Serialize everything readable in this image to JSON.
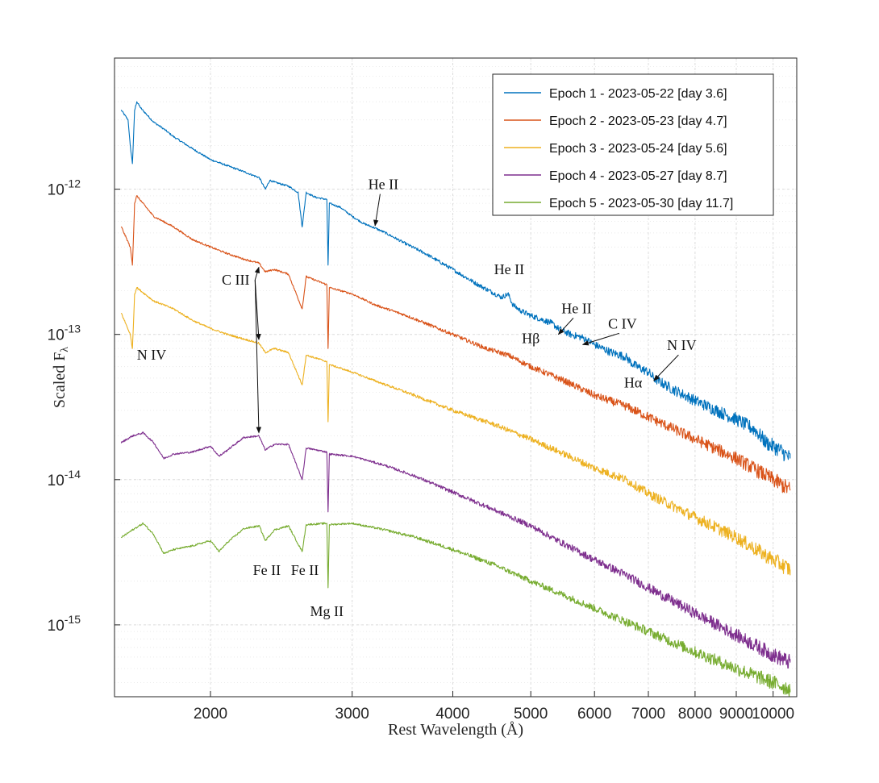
{
  "chart_data": {
    "type": "line",
    "title": "",
    "xlabel": "Rest Wavelength (Å)",
    "ylabel": "Scaled F",
    "ylabel_subscript": "λ",
    "xscale": "log",
    "yscale": "log",
    "xlim": [
      1520,
      10700
    ],
    "ylim": [
      3.2e-16,
      8e-12
    ],
    "grid": true,
    "minor_grid": true,
    "legend_position": "top-right",
    "x_ticks": [
      {
        "value": 2000,
        "label": "2000"
      },
      {
        "value": 3000,
        "label": "3000"
      },
      {
        "value": 4000,
        "label": "4000"
      },
      {
        "value": 5000,
        "label": "5000"
      },
      {
        "value": 6000,
        "label": "6000"
      },
      {
        "value": 7000,
        "label": "7000"
      },
      {
        "value": 8000,
        "label": "8000"
      },
      {
        "value": 9000,
        "label": "9000"
      },
      {
        "value": 10000,
        "label": "10000"
      }
    ],
    "y_ticks": [
      {
        "value": 1e-15,
        "mantissa": "10",
        "exponent": "-15"
      },
      {
        "value": 1e-14,
        "mantissa": "10",
        "exponent": "-14"
      },
      {
        "value": 1e-13,
        "mantissa": "10",
        "exponent": "-13"
      },
      {
        "value": 1e-12,
        "mantissa": "10",
        "exponent": "-12"
      }
    ],
    "series": [
      {
        "name": "Epoch 1 - 2023-05-22 [day 3.6]",
        "color": "#0072BD",
        "points": [
          [
            1550,
            3.5e-12
          ],
          [
            1580,
            3e-12
          ],
          [
            1590,
            2e-12
          ],
          [
            1600,
            1.5e-12
          ],
          [
            1610,
            3.5e-12
          ],
          [
            1620,
            4e-12
          ],
          [
            1640,
            3.6e-12
          ],
          [
            1700,
            2.9e-12
          ],
          [
            1750,
            2.6e-12
          ],
          [
            1800,
            2.3e-12
          ],
          [
            1900,
            1.9e-12
          ],
          [
            2000,
            1.6e-12
          ],
          [
            2100,
            1.45e-12
          ],
          [
            2200,
            1.32e-12
          ],
          [
            2300,
            1.2e-12
          ],
          [
            2340,
            1e-12
          ],
          [
            2370,
            1.15e-12
          ],
          [
            2400,
            1.12e-12
          ],
          [
            2500,
            1.05e-12
          ],
          [
            2570,
            9.5e-13
          ],
          [
            2600,
            5.5e-13
          ],
          [
            2630,
            9.5e-13
          ],
          [
            2700,
            8.8e-13
          ],
          [
            2790,
            8.5e-13
          ],
          [
            2800,
            3e-13
          ],
          [
            2810,
            8e-13
          ],
          [
            2900,
            7.5e-13
          ],
          [
            3000,
            6.5e-13
          ],
          [
            3100,
            5.8e-13
          ],
          [
            3203,
            5.4e-13
          ],
          [
            3300,
            5e-13
          ],
          [
            3500,
            4.2e-13
          ],
          [
            3700,
            3.6e-13
          ],
          [
            4000,
            2.8e-13
          ],
          [
            4300,
            2.2e-13
          ],
          [
            4600,
            1.8e-13
          ],
          [
            4686,
            1.9e-13
          ],
          [
            4750,
            1.6e-13
          ],
          [
            4861,
            1.45e-13
          ],
          [
            5000,
            1.35e-13
          ],
          [
            5300,
            1.2e-13
          ],
          [
            5411,
            1.1e-13
          ],
          [
            5600,
            1e-13
          ],
          [
            5801,
            9.5e-14
          ],
          [
            6000,
            8.5e-14
          ],
          [
            6300,
            7.5e-14
          ],
          [
            6563,
            7e-14
          ],
          [
            6700,
            6.2e-14
          ],
          [
            7000,
            5.5e-14
          ],
          [
            7109,
            5e-14
          ],
          [
            7500,
            4.2e-14
          ],
          [
            8000,
            3.5e-14
          ],
          [
            8500,
            3e-14
          ],
          [
            9000,
            2.6e-14
          ],
          [
            9500,
            2.2e-14
          ],
          [
            9800,
            1.8e-14
          ],
          [
            10200,
            1.6e-14
          ],
          [
            10500,
            1.4e-14
          ]
        ]
      },
      {
        "name": "Epoch 2 - 2023-05-23 [day 4.7]",
        "color": "#D95319",
        "points": [
          [
            1550,
            5.5e-13
          ],
          [
            1590,
            4e-13
          ],
          [
            1600,
            3e-13
          ],
          [
            1610,
            8e-13
          ],
          [
            1620,
            9e-13
          ],
          [
            1700,
            6.5e-13
          ],
          [
            1800,
            5.5e-13
          ],
          [
            1900,
            4.5e-13
          ],
          [
            2000,
            4e-13
          ],
          [
            2100,
            3.6e-13
          ],
          [
            2200,
            3.3e-13
          ],
          [
            2297,
            3.1e-13
          ],
          [
            2340,
            2.7e-13
          ],
          [
            2400,
            2.8e-13
          ],
          [
            2500,
            2.6e-13
          ],
          [
            2600,
            1.5e-13
          ],
          [
            2630,
            2.5e-13
          ],
          [
            2790,
            2.2e-13
          ],
          [
            2800,
            8e-14
          ],
          [
            2810,
            2.1e-13
          ],
          [
            3000,
            1.9e-13
          ],
          [
            3200,
            1.6e-13
          ],
          [
            3500,
            1.35e-13
          ],
          [
            4000,
            1e-13
          ],
          [
            4400,
            8e-14
          ],
          [
            4686,
            7.2e-14
          ],
          [
            5000,
            6e-14
          ],
          [
            5500,
            4.8e-14
          ],
          [
            6000,
            3.8e-14
          ],
          [
            6563,
            3.2e-14
          ],
          [
            7000,
            2.7e-14
          ],
          [
            8000,
            1.9e-14
          ],
          [
            9000,
            1.4e-14
          ],
          [
            10000,
            1e-14
          ],
          [
            10500,
            8.5e-15
          ]
        ]
      },
      {
        "name": "Epoch 3 - 2023-05-24 [day 5.6]",
        "color": "#EDB120",
        "points": [
          [
            1550,
            1.4e-13
          ],
          [
            1590,
            1e-13
          ],
          [
            1600,
            8e-14
          ],
          [
            1610,
            1.9e-13
          ],
          [
            1620,
            2.1e-13
          ],
          [
            1700,
            1.7e-13
          ],
          [
            1800,
            1.5e-13
          ],
          [
            1900,
            1.25e-13
          ],
          [
            2000,
            1.1e-13
          ],
          [
            2100,
            1e-13
          ],
          [
            2200,
            9.3e-14
          ],
          [
            2297,
            8.7e-14
          ],
          [
            2340,
            7.5e-14
          ],
          [
            2400,
            8e-14
          ],
          [
            2500,
            7.5e-14
          ],
          [
            2600,
            4.5e-14
          ],
          [
            2630,
            7.2e-14
          ],
          [
            2790,
            6.5e-14
          ],
          [
            2800,
            2.5e-14
          ],
          [
            2810,
            6.2e-14
          ],
          [
            3000,
            5.5e-14
          ],
          [
            3200,
            4.8e-14
          ],
          [
            3500,
            4e-14
          ],
          [
            4000,
            3e-14
          ],
          [
            4500,
            2.4e-14
          ],
          [
            5000,
            1.9e-14
          ],
          [
            5500,
            1.5e-14
          ],
          [
            6000,
            1.2e-14
          ],
          [
            6563,
            1e-14
          ],
          [
            7000,
            8e-15
          ],
          [
            8000,
            5.5e-15
          ],
          [
            9000,
            4e-15
          ],
          [
            10000,
            2.8e-15
          ],
          [
            10500,
            2.4e-15
          ]
        ]
      },
      {
        "name": "Epoch 4 - 2023-05-27 [day 8.7]",
        "color": "#7E2F8E",
        "points": [
          [
            1550,
            1.8e-14
          ],
          [
            1600,
            2e-14
          ],
          [
            1650,
            2.1e-14
          ],
          [
            1700,
            1.8e-14
          ],
          [
            1750,
            1.4e-14
          ],
          [
            1800,
            1.5e-14
          ],
          [
            1900,
            1.55e-14
          ],
          [
            2000,
            1.7e-14
          ],
          [
            2050,
            1.45e-14
          ],
          [
            2100,
            1.6e-14
          ],
          [
            2200,
            1.95e-14
          ],
          [
            2297,
            2e-14
          ],
          [
            2340,
            1.6e-14
          ],
          [
            2400,
            1.75e-14
          ],
          [
            2500,
            1.75e-14
          ],
          [
            2600,
            1e-14
          ],
          [
            2630,
            1.65e-14
          ],
          [
            2790,
            1.55e-14
          ],
          [
            2800,
            6e-15
          ],
          [
            2810,
            1.5e-14
          ],
          [
            3000,
            1.45e-14
          ],
          [
            3300,
            1.25e-14
          ],
          [
            3600,
            1.05e-14
          ],
          [
            4000,
            8.2e-15
          ],
          [
            4500,
            6.2e-15
          ],
          [
            5000,
            4.8e-15
          ],
          [
            5500,
            3.6e-15
          ],
          [
            6000,
            2.8e-15
          ],
          [
            6563,
            2.2e-15
          ],
          [
            7000,
            1.8e-15
          ],
          [
            8000,
            1.2e-15
          ],
          [
            9000,
            8.5e-16
          ],
          [
            10000,
            6.2e-16
          ],
          [
            10500,
            5.5e-16
          ]
        ]
      },
      {
        "name": "Epoch 5 - 2023-05-30 [day 11.7]",
        "color": "#77AC30",
        "points": [
          [
            1550,
            4e-15
          ],
          [
            1600,
            4.5e-15
          ],
          [
            1650,
            5e-15
          ],
          [
            1700,
            4.2e-15
          ],
          [
            1750,
            3.1e-15
          ],
          [
            1800,
            3.3e-15
          ],
          [
            1900,
            3.5e-15
          ],
          [
            2000,
            3.8e-15
          ],
          [
            2050,
            3.2e-15
          ],
          [
            2100,
            3.7e-15
          ],
          [
            2200,
            4.6e-15
          ],
          [
            2300,
            4.8e-15
          ],
          [
            2340,
            3.8e-15
          ],
          [
            2400,
            4.5e-15
          ],
          [
            2500,
            4.8e-15
          ],
          [
            2600,
            3.2e-15
          ],
          [
            2630,
            4.9e-15
          ],
          [
            2790,
            5e-15
          ],
          [
            2800,
            1.8e-15
          ],
          [
            2810,
            4.9e-15
          ],
          [
            3000,
            5e-15
          ],
          [
            3300,
            4.5e-15
          ],
          [
            3600,
            4e-15
          ],
          [
            4000,
            3.3e-15
          ],
          [
            4500,
            2.6e-15
          ],
          [
            5000,
            2e-15
          ],
          [
            5500,
            1.6e-15
          ],
          [
            6000,
            1.3e-15
          ],
          [
            6563,
            1.05e-15
          ],
          [
            7000,
            9e-16
          ],
          [
            8000,
            6.5e-16
          ],
          [
            9000,
            5e-16
          ],
          [
            10000,
            4e-16
          ],
          [
            10500,
            3.6e-16
          ]
        ]
      }
    ],
    "annotations": [
      {
        "text": "He II",
        "tx": 3280,
        "ty": 1e-12,
        "ax": 3203,
        "ay": 5.6e-13
      },
      {
        "text": "He II",
        "tx": 4700,
        "ty": 2.6e-13
      },
      {
        "text": "He II",
        "tx": 5700,
        "ty": 1.4e-13,
        "ax": 5411,
        "ay": 1e-13
      },
      {
        "text": "C IV",
        "tx": 6500,
        "ty": 1.1e-13,
        "ax": 5801,
        "ay": 8.5e-14
      },
      {
        "text": "Hβ",
        "tx": 5000,
        "ty": 8.7e-14
      },
      {
        "text": "Hα",
        "tx": 6700,
        "ty": 4.3e-14
      },
      {
        "text": "N IV",
        "tx": 7700,
        "ty": 7.8e-14,
        "ax": 7109,
        "ay": 4.8e-14
      },
      {
        "text": "N IV",
        "tx": 1690,
        "ty": 6.7e-14
      },
      {
        "text": "C III",
        "tx": 2150,
        "ty": 2.2e-13,
        "arrows": [
          [
            2297,
            2.9e-13
          ],
          [
            2297,
            9.2e-14
          ],
          [
            2297,
            2.1e-14
          ]
        ]
      },
      {
        "text": "Fe II",
        "tx": 2350,
        "ty": 2.2e-15
      },
      {
        "text": "Fe II",
        "tx": 2620,
        "ty": 2.2e-15
      },
      {
        "text": "Mg II",
        "tx": 2790,
        "ty": 1.15e-15
      }
    ]
  }
}
